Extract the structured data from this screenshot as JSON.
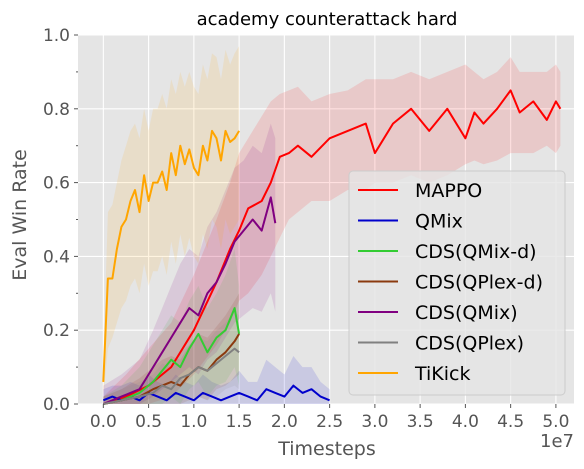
{
  "chart_data": {
    "type": "line",
    "title": "academy counterattack hard",
    "xlabel": "Timesteps",
    "ylabel": "Eval Win Rate",
    "x_offset_label": "1e7",
    "xlim": [
      -0.28,
      5.2
    ],
    "ylim": [
      0,
      1.0
    ],
    "x_ticks": [
      0.0,
      0.5,
      1.0,
      1.5,
      2.0,
      2.5,
      3.0,
      3.5,
      4.0,
      4.5,
      5.0
    ],
    "x_tick_labels": [
      "0.0",
      "0.5",
      "1.0",
      "1.5",
      "2.0",
      "2.5",
      "3.0",
      "3.5",
      "4.0",
      "4.5",
      "5.0"
    ],
    "y_ticks": [
      0.0,
      0.2,
      0.4,
      0.6,
      0.8,
      1.0
    ],
    "y_tick_labels": [
      "0.0",
      "0.2",
      "0.4",
      "0.6",
      "0.8",
      "1.0"
    ],
    "grid": true,
    "background": "#e5e5e5",
    "legend_position": "lower-right",
    "series": [
      {
        "name": "MAPPO",
        "color": "#ff0000",
        "x": [
          0.0,
          0.25,
          0.5,
          0.75,
          1.0,
          1.25,
          1.4,
          1.5,
          1.6,
          1.75,
          1.85,
          1.95,
          2.05,
          2.15,
          2.3,
          2.5,
          2.7,
          2.9,
          3.0,
          3.2,
          3.4,
          3.6,
          3.8,
          4.0,
          4.1,
          4.2,
          4.35,
          4.5,
          4.6,
          4.75,
          4.9,
          5.0,
          5.05
        ],
        "y": [
          0.0,
          0.02,
          0.05,
          0.1,
          0.2,
          0.33,
          0.42,
          0.47,
          0.53,
          0.55,
          0.6,
          0.67,
          0.68,
          0.7,
          0.67,
          0.72,
          0.74,
          0.76,
          0.68,
          0.76,
          0.8,
          0.74,
          0.8,
          0.72,
          0.79,
          0.76,
          0.8,
          0.85,
          0.79,
          0.82,
          0.77,
          0.82,
          0.8
        ],
        "lower": [
          0.0,
          0.0,
          0.0,
          0.02,
          0.08,
          0.16,
          0.22,
          0.28,
          0.3,
          0.35,
          0.4,
          0.45,
          0.5,
          0.52,
          0.55,
          0.55,
          0.58,
          0.58,
          0.6,
          0.6,
          0.62,
          0.6,
          0.62,
          0.65,
          0.66,
          0.65,
          0.66,
          0.68,
          0.68,
          0.68,
          0.7,
          0.68,
          0.7
        ],
        "upper": [
          0.02,
          0.08,
          0.15,
          0.22,
          0.35,
          0.5,
          0.6,
          0.68,
          0.72,
          0.78,
          0.82,
          0.84,
          0.85,
          0.86,
          0.82,
          0.84,
          0.85,
          0.88,
          0.88,
          0.88,
          0.9,
          0.88,
          0.9,
          0.92,
          0.9,
          0.88,
          0.9,
          0.94,
          0.9,
          0.9,
          0.9,
          0.92,
          0.9
        ]
      },
      {
        "name": "QMix",
        "color": "#0000cc",
        "x": [
          0.0,
          0.1,
          0.2,
          0.3,
          0.4,
          0.5,
          0.6,
          0.7,
          0.8,
          0.9,
          1.0,
          1.1,
          1.2,
          1.3,
          1.4,
          1.5,
          1.6,
          1.7,
          1.8,
          1.9,
          2.0,
          2.1,
          2.2,
          2.3,
          2.4,
          2.5
        ],
        "y": [
          0.01,
          0.02,
          0.01,
          0.02,
          0.01,
          0.03,
          0.02,
          0.01,
          0.03,
          0.02,
          0.01,
          0.03,
          0.02,
          0.01,
          0.02,
          0.03,
          0.02,
          0.01,
          0.04,
          0.03,
          0.02,
          0.05,
          0.03,
          0.04,
          0.02,
          0.01
        ],
        "lower": [
          0.0,
          0.0,
          0.0,
          0.0,
          0.0,
          0.0,
          0.0,
          0.0,
          0.0,
          0.0,
          0.0,
          0.0,
          0.0,
          0.0,
          0.0,
          0.0,
          0.0,
          0.0,
          0.0,
          0.0,
          0.0,
          0.0,
          0.0,
          0.0,
          0.0,
          0.0
        ],
        "upper": [
          0.04,
          0.05,
          0.05,
          0.06,
          0.05,
          0.08,
          0.06,
          0.05,
          0.08,
          0.06,
          0.05,
          0.08,
          0.06,
          0.05,
          0.06,
          0.09,
          0.06,
          0.06,
          0.12,
          0.1,
          0.08,
          0.13,
          0.1,
          0.1,
          0.06,
          0.04
        ]
      },
      {
        "name": "CDS(QMix-d)",
        "color": "#33cc33",
        "x": [
          0.0,
          0.2,
          0.4,
          0.55,
          0.65,
          0.75,
          0.85,
          0.95,
          1.05,
          1.15,
          1.25,
          1.35,
          1.45,
          1.5
        ],
        "y": [
          0.0,
          0.01,
          0.03,
          0.06,
          0.09,
          0.12,
          0.1,
          0.15,
          0.19,
          0.14,
          0.18,
          0.2,
          0.26,
          0.19
        ],
        "lower": [
          0.0,
          0.0,
          0.0,
          0.0,
          0.0,
          0.02,
          0.0,
          0.04,
          0.06,
          0.02,
          0.05,
          0.06,
          0.1,
          0.05
        ],
        "upper": [
          0.02,
          0.05,
          0.1,
          0.16,
          0.2,
          0.24,
          0.22,
          0.28,
          0.32,
          0.26,
          0.3,
          0.35,
          0.42,
          0.32
        ]
      },
      {
        "name": "CDS(QPlex-d)",
        "color": "#8b3a0f",
        "x": [
          0.0,
          0.2,
          0.4,
          0.55,
          0.65,
          0.75,
          0.85,
          0.95,
          1.05,
          1.15,
          1.25,
          1.35,
          1.45,
          1.5
        ],
        "y": [
          0.0,
          0.01,
          0.02,
          0.04,
          0.05,
          0.06,
          0.05,
          0.08,
          0.1,
          0.09,
          0.12,
          0.14,
          0.17,
          0.19
        ],
        "lower": [
          0.0,
          0.0,
          0.0,
          0.0,
          0.0,
          0.0,
          0.0,
          0.01,
          0.02,
          0.01,
          0.04,
          0.05,
          0.07,
          0.08
        ],
        "upper": [
          0.02,
          0.04,
          0.07,
          0.1,
          0.12,
          0.13,
          0.12,
          0.16,
          0.19,
          0.18,
          0.21,
          0.24,
          0.28,
          0.3
        ]
      },
      {
        "name": "CDS(QMix)",
        "color": "#800080",
        "x": [
          0.0,
          0.2,
          0.4,
          0.55,
          0.65,
          0.75,
          0.85,
          0.95,
          1.05,
          1.15,
          1.25,
          1.35,
          1.45,
          1.55,
          1.65,
          1.75,
          1.85,
          1.9
        ],
        "y": [
          0.0,
          0.02,
          0.04,
          0.1,
          0.14,
          0.18,
          0.22,
          0.26,
          0.24,
          0.3,
          0.33,
          0.38,
          0.44,
          0.47,
          0.5,
          0.47,
          0.56,
          0.49
        ],
        "lower": [
          0.0,
          0.0,
          0.0,
          0.02,
          0.04,
          0.06,
          0.08,
          0.1,
          0.08,
          0.12,
          0.14,
          0.18,
          0.22,
          0.24,
          0.26,
          0.25,
          0.3,
          0.25
        ],
        "upper": [
          0.05,
          0.08,
          0.12,
          0.2,
          0.26,
          0.32,
          0.38,
          0.42,
          0.4,
          0.48,
          0.52,
          0.58,
          0.64,
          0.66,
          0.7,
          0.68,
          0.76,
          0.72
        ]
      },
      {
        "name": "CDS(QPlex)",
        "color": "#808080",
        "x": [
          0.0,
          0.2,
          0.4,
          0.55,
          0.65,
          0.75,
          0.85,
          0.95,
          1.05,
          1.15,
          1.25,
          1.35,
          1.45,
          1.5
        ],
        "y": [
          0.0,
          0.01,
          0.02,
          0.03,
          0.05,
          0.04,
          0.07,
          0.08,
          0.1,
          0.09,
          0.11,
          0.13,
          0.15,
          0.14
        ],
        "lower": [
          0.0,
          0.0,
          0.0,
          0.0,
          0.0,
          0.0,
          0.0,
          0.0,
          0.02,
          0.01,
          0.02,
          0.04,
          0.05,
          0.04
        ],
        "upper": [
          0.02,
          0.04,
          0.06,
          0.08,
          0.11,
          0.1,
          0.14,
          0.16,
          0.18,
          0.17,
          0.2,
          0.22,
          0.25,
          0.24
        ]
      },
      {
        "name": "TiKick",
        "color": "#ffa500",
        "x": [
          0.0,
          0.05,
          0.1,
          0.15,
          0.2,
          0.25,
          0.3,
          0.35,
          0.4,
          0.45,
          0.5,
          0.55,
          0.6,
          0.65,
          0.7,
          0.75,
          0.8,
          0.85,
          0.9,
          0.95,
          1.0,
          1.05,
          1.1,
          1.15,
          1.2,
          1.25,
          1.3,
          1.35,
          1.4,
          1.45,
          1.5
        ],
        "y": [
          0.06,
          0.34,
          0.34,
          0.42,
          0.48,
          0.5,
          0.55,
          0.58,
          0.52,
          0.62,
          0.55,
          0.6,
          0.6,
          0.63,
          0.58,
          0.68,
          0.62,
          0.7,
          0.65,
          0.69,
          0.64,
          0.62,
          0.7,
          0.66,
          0.74,
          0.72,
          0.66,
          0.74,
          0.71,
          0.72,
          0.74
        ],
        "lower": [
          0.02,
          0.15,
          0.18,
          0.22,
          0.26,
          0.28,
          0.32,
          0.34,
          0.3,
          0.38,
          0.32,
          0.36,
          0.36,
          0.4,
          0.35,
          0.44,
          0.38,
          0.46,
          0.4,
          0.45,
          0.4,
          0.38,
          0.46,
          0.42,
          0.5,
          0.48,
          0.42,
          0.5,
          0.46,
          0.48,
          0.5
        ],
        "upper": [
          0.12,
          0.52,
          0.54,
          0.6,
          0.66,
          0.7,
          0.74,
          0.76,
          0.72,
          0.8,
          0.74,
          0.8,
          0.8,
          0.84,
          0.8,
          0.88,
          0.84,
          0.9,
          0.86,
          0.9,
          0.86,
          0.84,
          0.92,
          0.88,
          0.95,
          0.94,
          0.88,
          0.96,
          0.92,
          0.95,
          0.97
        ]
      }
    ]
  }
}
